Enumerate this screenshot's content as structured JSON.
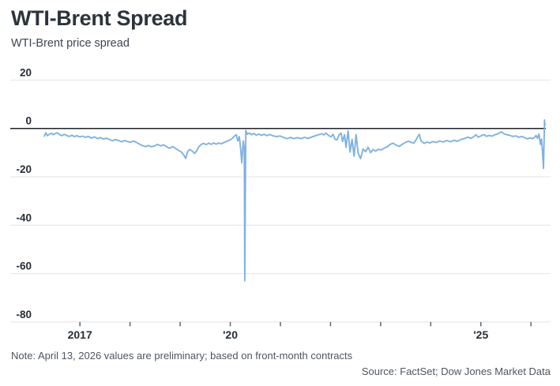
{
  "header": {
    "title": "WTI-Brent Spread",
    "subtitle": "WTI-Brent price spread"
  },
  "footer": {
    "note": "Note: April 13, 2026 values are preliminary; based on front-month contracts",
    "source": "Source: FactSet; Dow Jones Market Data"
  },
  "chart_data": {
    "type": "line",
    "title": "WTI-Brent Spread",
    "series_name": "WTI-Brent price spread",
    "line_color": "#7fb2e1",
    "zero_line_color": "#1e2226",
    "grid_color": "#e4e4e4",
    "axis_tick_color": "#60666c",
    "grid": true,
    "legend_position": "none",
    "xlabel": "",
    "ylabel": "",
    "ylim": [
      -80,
      20
    ],
    "xlim": [
      2015.61,
      2026.39
    ],
    "y_ticks": [
      {
        "value": 20,
        "label": "20"
      },
      {
        "value": 0,
        "label": "0"
      },
      {
        "value": -20,
        "label": "-20"
      },
      {
        "value": -40,
        "label": "-40"
      },
      {
        "value": -60,
        "label": "-60"
      },
      {
        "value": -80,
        "label": "-80"
      }
    ],
    "x_ticks": [
      {
        "year": 2017,
        "label": "2017"
      },
      {
        "year": 2018,
        "label": ""
      },
      {
        "year": 2019,
        "label": ""
      },
      {
        "year": 2020,
        "label": "'20"
      },
      {
        "year": 2021,
        "label": ""
      },
      {
        "year": 2022,
        "label": ""
      },
      {
        "year": 2023,
        "label": ""
      },
      {
        "year": 2024,
        "label": ""
      },
      {
        "year": 2025,
        "label": "'25"
      },
      {
        "year": 2026,
        "label": ""
      }
    ],
    "points": [
      [
        2016.29,
        -3.2
      ],
      [
        2016.32,
        -1.8
      ],
      [
        2016.35,
        -3.0
      ],
      [
        2016.39,
        -2.4
      ],
      [
        2016.43,
        -2.0
      ],
      [
        2016.47,
        -2.6
      ],
      [
        2016.51,
        -2.1
      ],
      [
        2016.55,
        -1.8
      ],
      [
        2016.6,
        -2.6
      ],
      [
        2016.64,
        -3.0
      ],
      [
        2016.69,
        -2.4
      ],
      [
        2016.74,
        -3.0
      ],
      [
        2016.79,
        -3.3
      ],
      [
        2016.84,
        -2.8
      ],
      [
        2016.89,
        -3.4
      ],
      [
        2016.94,
        -3.0
      ],
      [
        2016.99,
        -3.5
      ],
      [
        2017.05,
        -3.2
      ],
      [
        2017.11,
        -3.7
      ],
      [
        2017.17,
        -3.3
      ],
      [
        2017.23,
        -4.0
      ],
      [
        2017.29,
        -3.5
      ],
      [
        2017.35,
        -4.2
      ],
      [
        2017.41,
        -3.8
      ],
      [
        2017.47,
        -4.4
      ],
      [
        2017.53,
        -4.0
      ],
      [
        2017.59,
        -4.6
      ],
      [
        2017.65,
        -5.1
      ],
      [
        2017.71,
        -4.6
      ],
      [
        2017.77,
        -5.0
      ],
      [
        2017.83,
        -5.5
      ],
      [
        2017.89,
        -5.0
      ],
      [
        2017.95,
        -5.4
      ],
      [
        2018.01,
        -5.7
      ],
      [
        2018.07,
        -5.2
      ],
      [
        2018.13,
        -5.8
      ],
      [
        2018.19,
        -6.5
      ],
      [
        2018.25,
        -7.1
      ],
      [
        2018.31,
        -7.5
      ],
      [
        2018.37,
        -7.0
      ],
      [
        2018.43,
        -7.6
      ],
      [
        2018.49,
        -7.2
      ],
      [
        2018.55,
        -6.6
      ],
      [
        2018.61,
        -7.2
      ],
      [
        2018.67,
        -6.8
      ],
      [
        2018.73,
        -7.6
      ],
      [
        2018.79,
        -8.2
      ],
      [
        2018.85,
        -7.5
      ],
      [
        2018.91,
        -8.3
      ],
      [
        2018.96,
        -9.0
      ],
      [
        2019.02,
        -9.7
      ],
      [
        2019.07,
        -10.9
      ],
      [
        2019.11,
        -12.4
      ],
      [
        2019.15,
        -9.5
      ],
      [
        2019.19,
        -8.7
      ],
      [
        2019.24,
        -9.4
      ],
      [
        2019.29,
        -10.3
      ],
      [
        2019.33,
        -9.3
      ],
      [
        2019.37,
        -7.6
      ],
      [
        2019.42,
        -6.6
      ],
      [
        2019.47,
        -6.2
      ],
      [
        2019.52,
        -6.7
      ],
      [
        2019.57,
        -6.1
      ],
      [
        2019.62,
        -6.6
      ],
      [
        2019.67,
        -6.0
      ],
      [
        2019.72,
        -6.5
      ],
      [
        2019.77,
        -6.0
      ],
      [
        2019.82,
        -6.4
      ],
      [
        2019.87,
        -5.8
      ],
      [
        2019.92,
        -5.4
      ],
      [
        2019.97,
        -5.0
      ],
      [
        2020.03,
        -4.3
      ],
      [
        2020.08,
        -3.2
      ],
      [
        2020.12,
        -2.6
      ],
      [
        2020.15,
        -5.2
      ],
      [
        2020.18,
        -3.4
      ],
      [
        2020.21,
        -9.2
      ],
      [
        2020.23,
        -14.2
      ],
      [
        2020.26,
        -5.2
      ],
      [
        2020.28,
        -8.2
      ],
      [
        2020.29,
        -63.0
      ],
      [
        2020.31,
        -0.8
      ],
      [
        2020.34,
        -2.4
      ],
      [
        2020.38,
        -1.9
      ],
      [
        2020.42,
        -2.6
      ],
      [
        2020.47,
        -2.1
      ],
      [
        2020.52,
        -2.8
      ],
      [
        2020.57,
        -2.3
      ],
      [
        2020.62,
        -2.9
      ],
      [
        2020.67,
        -2.4
      ],
      [
        2020.73,
        -3.0
      ],
      [
        2020.79,
        -2.5
      ],
      [
        2020.86,
        -3.1
      ],
      [
        2020.93,
        -3.4
      ],
      [
        2020.99,
        -3.1
      ],
      [
        2021.06,
        -3.7
      ],
      [
        2021.13,
        -4.2
      ],
      [
        2021.2,
        -3.7
      ],
      [
        2021.27,
        -4.2
      ],
      [
        2021.34,
        -3.8
      ],
      [
        2021.41,
        -4.2
      ],
      [
        2021.48,
        -3.7
      ],
      [
        2021.55,
        -4.1
      ],
      [
        2021.62,
        -3.6
      ],
      [
        2021.69,
        -3.1
      ],
      [
        2021.76,
        -2.6
      ],
      [
        2021.83,
        -2.2
      ],
      [
        2021.87,
        -2.7
      ],
      [
        2021.91,
        -1.9
      ],
      [
        2021.96,
        -2.9
      ],
      [
        2022.01,
        -3.5
      ],
      [
        2022.05,
        -2.4
      ],
      [
        2022.09,
        -4.5
      ],
      [
        2022.13,
        -4.7
      ],
      [
        2022.17,
        -2.7
      ],
      [
        2022.21,
        -1.9
      ],
      [
        2022.24,
        -5.4
      ],
      [
        2022.28,
        -2.6
      ],
      [
        2022.31,
        -7.8
      ],
      [
        2022.35,
        -1.0
      ],
      [
        2022.39,
        -9.8
      ],
      [
        2022.43,
        -4.5
      ],
      [
        2022.47,
        -11.5
      ],
      [
        2022.51,
        -2.5
      ],
      [
        2022.55,
        -10.0
      ],
      [
        2022.6,
        -12.5
      ],
      [
        2022.65,
        -8.5
      ],
      [
        2022.7,
        -9.6
      ],
      [
        2022.75,
        -7.8
      ],
      [
        2022.8,
        -10.0
      ],
      [
        2022.85,
        -8.7
      ],
      [
        2022.9,
        -9.4
      ],
      [
        2022.95,
        -8.6
      ],
      [
        2023.01,
        -8.9
      ],
      [
        2023.07,
        -8.2
      ],
      [
        2023.13,
        -7.6
      ],
      [
        2023.19,
        -6.6
      ],
      [
        2023.25,
        -6.1
      ],
      [
        2023.31,
        -6.9
      ],
      [
        2023.37,
        -7.4
      ],
      [
        2023.43,
        -6.6
      ],
      [
        2023.49,
        -5.8
      ],
      [
        2023.55,
        -5.3
      ],
      [
        2023.61,
        -5.7
      ],
      [
        2023.66,
        -6.1
      ],
      [
        2023.7,
        -5.0
      ],
      [
        2023.74,
        -3.4
      ],
      [
        2023.77,
        -2.4
      ],
      [
        2023.81,
        -5.3
      ],
      [
        2023.87,
        -6.2
      ],
      [
        2023.93,
        -5.6
      ],
      [
        2023.98,
        -6.0
      ],
      [
        2024.04,
        -5.4
      ],
      [
        2024.11,
        -5.8
      ],
      [
        2024.18,
        -5.2
      ],
      [
        2024.25,
        -5.6
      ],
      [
        2024.32,
        -5.0
      ],
      [
        2024.39,
        -5.5
      ],
      [
        2024.46,
        -4.9
      ],
      [
        2024.53,
        -5.3
      ],
      [
        2024.6,
        -4.6
      ],
      [
        2024.67,
        -4.2
      ],
      [
        2024.74,
        -3.6
      ],
      [
        2024.8,
        -4.1
      ],
      [
        2024.86,
        -3.4
      ],
      [
        2024.9,
        -2.6
      ],
      [
        2024.95,
        -3.6
      ],
      [
        2025.01,
        -3.0
      ],
      [
        2025.06,
        -2.5
      ],
      [
        2025.11,
        -3.3
      ],
      [
        2025.16,
        -2.9
      ],
      [
        2025.22,
        -3.2
      ],
      [
        2025.28,
        -2.6
      ],
      [
        2025.34,
        -2.2
      ],
      [
        2025.38,
        -1.8
      ],
      [
        2025.41,
        -1.4
      ],
      [
        2025.46,
        -2.2
      ],
      [
        2025.52,
        -2.6
      ],
      [
        2025.58,
        -2.9
      ],
      [
        2025.64,
        -3.3
      ],
      [
        2025.7,
        -3.1
      ],
      [
        2025.76,
        -3.7
      ],
      [
        2025.82,
        -3.3
      ],
      [
        2025.88,
        -3.9
      ],
      [
        2025.93,
        -4.3
      ],
      [
        2025.98,
        -3.9
      ],
      [
        2026.03,
        -4.2
      ],
      [
        2026.07,
        -3.8
      ],
      [
        2026.1,
        -2.9
      ],
      [
        2026.13,
        -4.1
      ],
      [
        2026.16,
        -2.3
      ],
      [
        2026.19,
        -6.6
      ],
      [
        2026.21,
        -4.4
      ],
      [
        2026.23,
        -9.4
      ],
      [
        2026.25,
        -16.5
      ],
      [
        2026.27,
        3.5
      ],
      [
        2026.28,
        1.3
      ]
    ]
  }
}
